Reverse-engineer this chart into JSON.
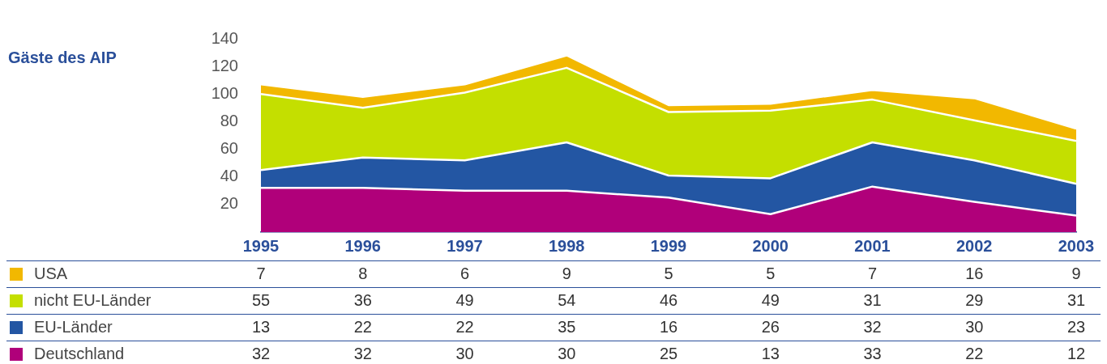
{
  "chart_data": {
    "type": "area",
    "annotations": [
      "Gäste des AIP"
    ],
    "categories": [
      "1995",
      "1996",
      "1997",
      "1998",
      "1999",
      "2000",
      "2001",
      "2002",
      "2003"
    ],
    "stacked": true,
    "ylim": [
      0,
      140
    ],
    "yticks": [
      20,
      40,
      60,
      80,
      100,
      120,
      140
    ],
    "legend": "bottom",
    "data_labels": true,
    "series": [
      {
        "name": "Deutschland",
        "color": "#b0007a",
        "values": [
          32,
          32,
          30,
          30,
          25,
          13,
          33,
          22,
          12
        ]
      },
      {
        "name": "EU-Länder",
        "color": "#2356a3",
        "values": [
          13,
          22,
          22,
          35,
          16,
          26,
          32,
          30,
          23
        ]
      },
      {
        "name": "nicht EU-Länder",
        "color": "#c4df00",
        "values": [
          55,
          36,
          49,
          54,
          46,
          49,
          31,
          29,
          31
        ]
      },
      {
        "name": "USA",
        "color": "#f2b800",
        "values": [
          7,
          8,
          6,
          9,
          5,
          5,
          7,
          16,
          9
        ]
      }
    ]
  }
}
